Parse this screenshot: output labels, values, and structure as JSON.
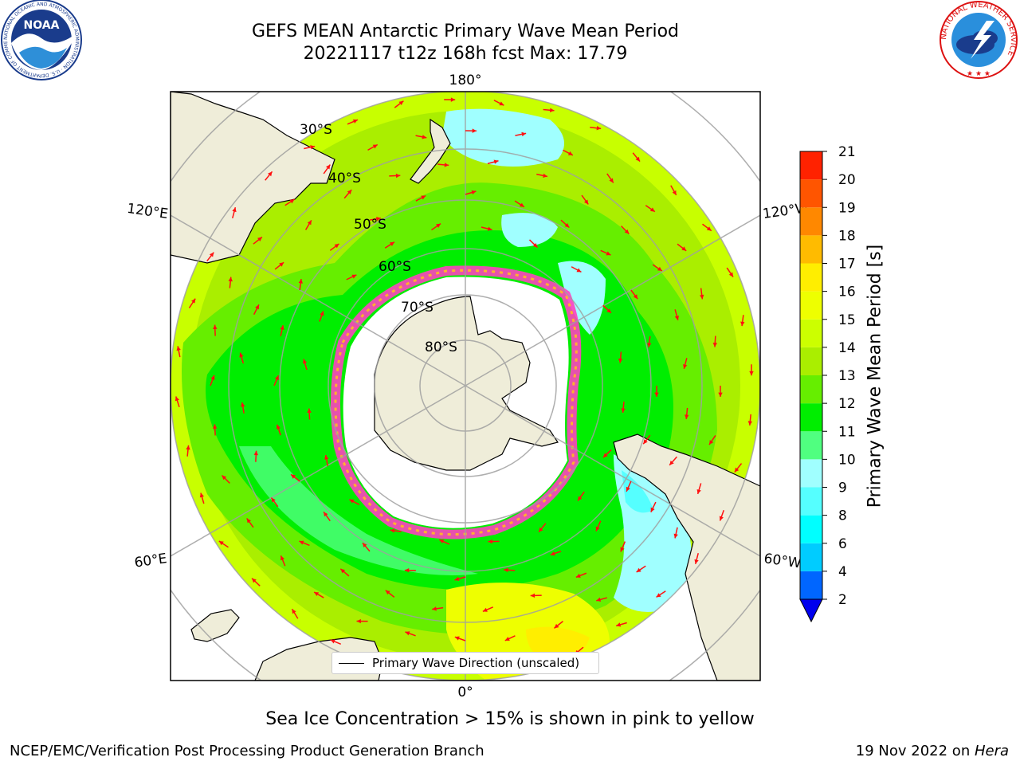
{
  "header": {
    "title_line1": "GEFS MEAN Antarctic Primary Wave Mean Period",
    "title_line2": "20221117 t12z 168h fcst   Max: 17.79"
  },
  "logos": {
    "noaa": {
      "text": "NOAA",
      "ring_text": "NATIONAL OCEANIC AND ATMOSPHERIC ADMINISTRATION · U.S. DEPARTMENT OF COMMERCE"
    },
    "nws": {
      "ring_text": "NATIONAL WEATHER SERVICE"
    }
  },
  "map": {
    "projection": "south-polar-stereographic",
    "meridian_labels": {
      "top": "180°",
      "bottom": "0°",
      "left_upper": "120°E",
      "left_lower": "60°E",
      "right_upper": "120°W",
      "right_lower": "60°W"
    },
    "latitude_labels": [
      "30°S",
      "40°S",
      "50°S",
      "60°S",
      "70°S",
      "80°S"
    ],
    "legend": "Primary Wave Direction (unscaled)",
    "colors": {
      "land": "#efedd9",
      "ice_sheet": "#ffffff",
      "sea_ice_edge": [
        "#ff40c0",
        "#ffb030"
      ],
      "arrow": "#ff1010"
    }
  },
  "colorbar": {
    "label": "Primary Wave Mean Period [s]",
    "ticks": [
      "2",
      "4",
      "6",
      "8",
      "9",
      "10",
      "11",
      "12",
      "13",
      "14",
      "15",
      "16",
      "17",
      "18",
      "19",
      "20",
      "21"
    ],
    "colors": [
      "#0066ff",
      "#00ccff",
      "#00ffff",
      "#55ffff",
      "#a0ffff",
      "#50ff80",
      "#00ee00",
      "#66ee00",
      "#aaee00",
      "#ccff00",
      "#eeff00",
      "#ffee00",
      "#ffbb00",
      "#ff8800",
      "#ff5500",
      "#ff2200"
    ],
    "under_color": "#0000ee"
  },
  "caption": "Sea Ice Concentration > 15% is shown in pink to yellow",
  "footer": {
    "left": "NCEP/EMC/Verification Post Processing Product Generation Branch",
    "right_prefix": "19 Nov 2022 on ",
    "right_host": "Hera"
  }
}
